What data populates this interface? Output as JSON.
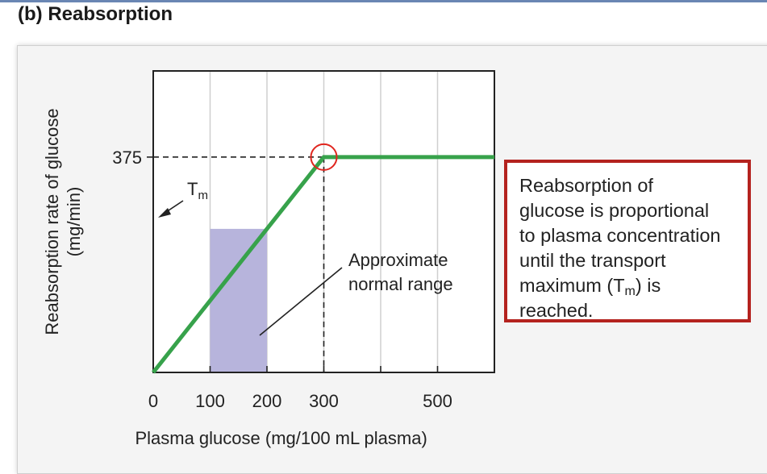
{
  "heading": "(b) Reabsorption",
  "chart_data": {
    "type": "line",
    "x": [
      0,
      300,
      600
    ],
    "y": [
      0,
      375,
      375
    ],
    "xlabel": "Plasma glucose (mg/100 mL plasma)",
    "ylabel_line1": "Reabsorption rate of glucose",
    "ylabel_line2": "(mg/min)",
    "xlim": [
      0,
      600
    ],
    "ylim": [
      0,
      525
    ],
    "x_ticks": [
      0,
      100,
      200,
      300,
      500
    ],
    "y_ticks": [
      375
    ],
    "gridlines_x": [
      100,
      200,
      300,
      400,
      500
    ],
    "shaded_range": [
      100,
      200
    ],
    "tm_label": "T",
    "tm_subscript": "m",
    "range_label_line1": "Approximate",
    "range_label_line2": "normal range",
    "colors": {
      "line": "#37a24b",
      "shade": "#b7b4dc",
      "marker": "#e0261f",
      "grid": "#cfcfcf"
    }
  },
  "callout": {
    "line1": "Reabsorption of",
    "line2": "glucose is proportional",
    "line3": "to plasma concentration",
    "line4": "until the transport",
    "line5_pre": "maximum (T",
    "line5_sub": "m",
    "line5_post": ") is",
    "line6": "reached.",
    "border_color": "#b4221e"
  }
}
